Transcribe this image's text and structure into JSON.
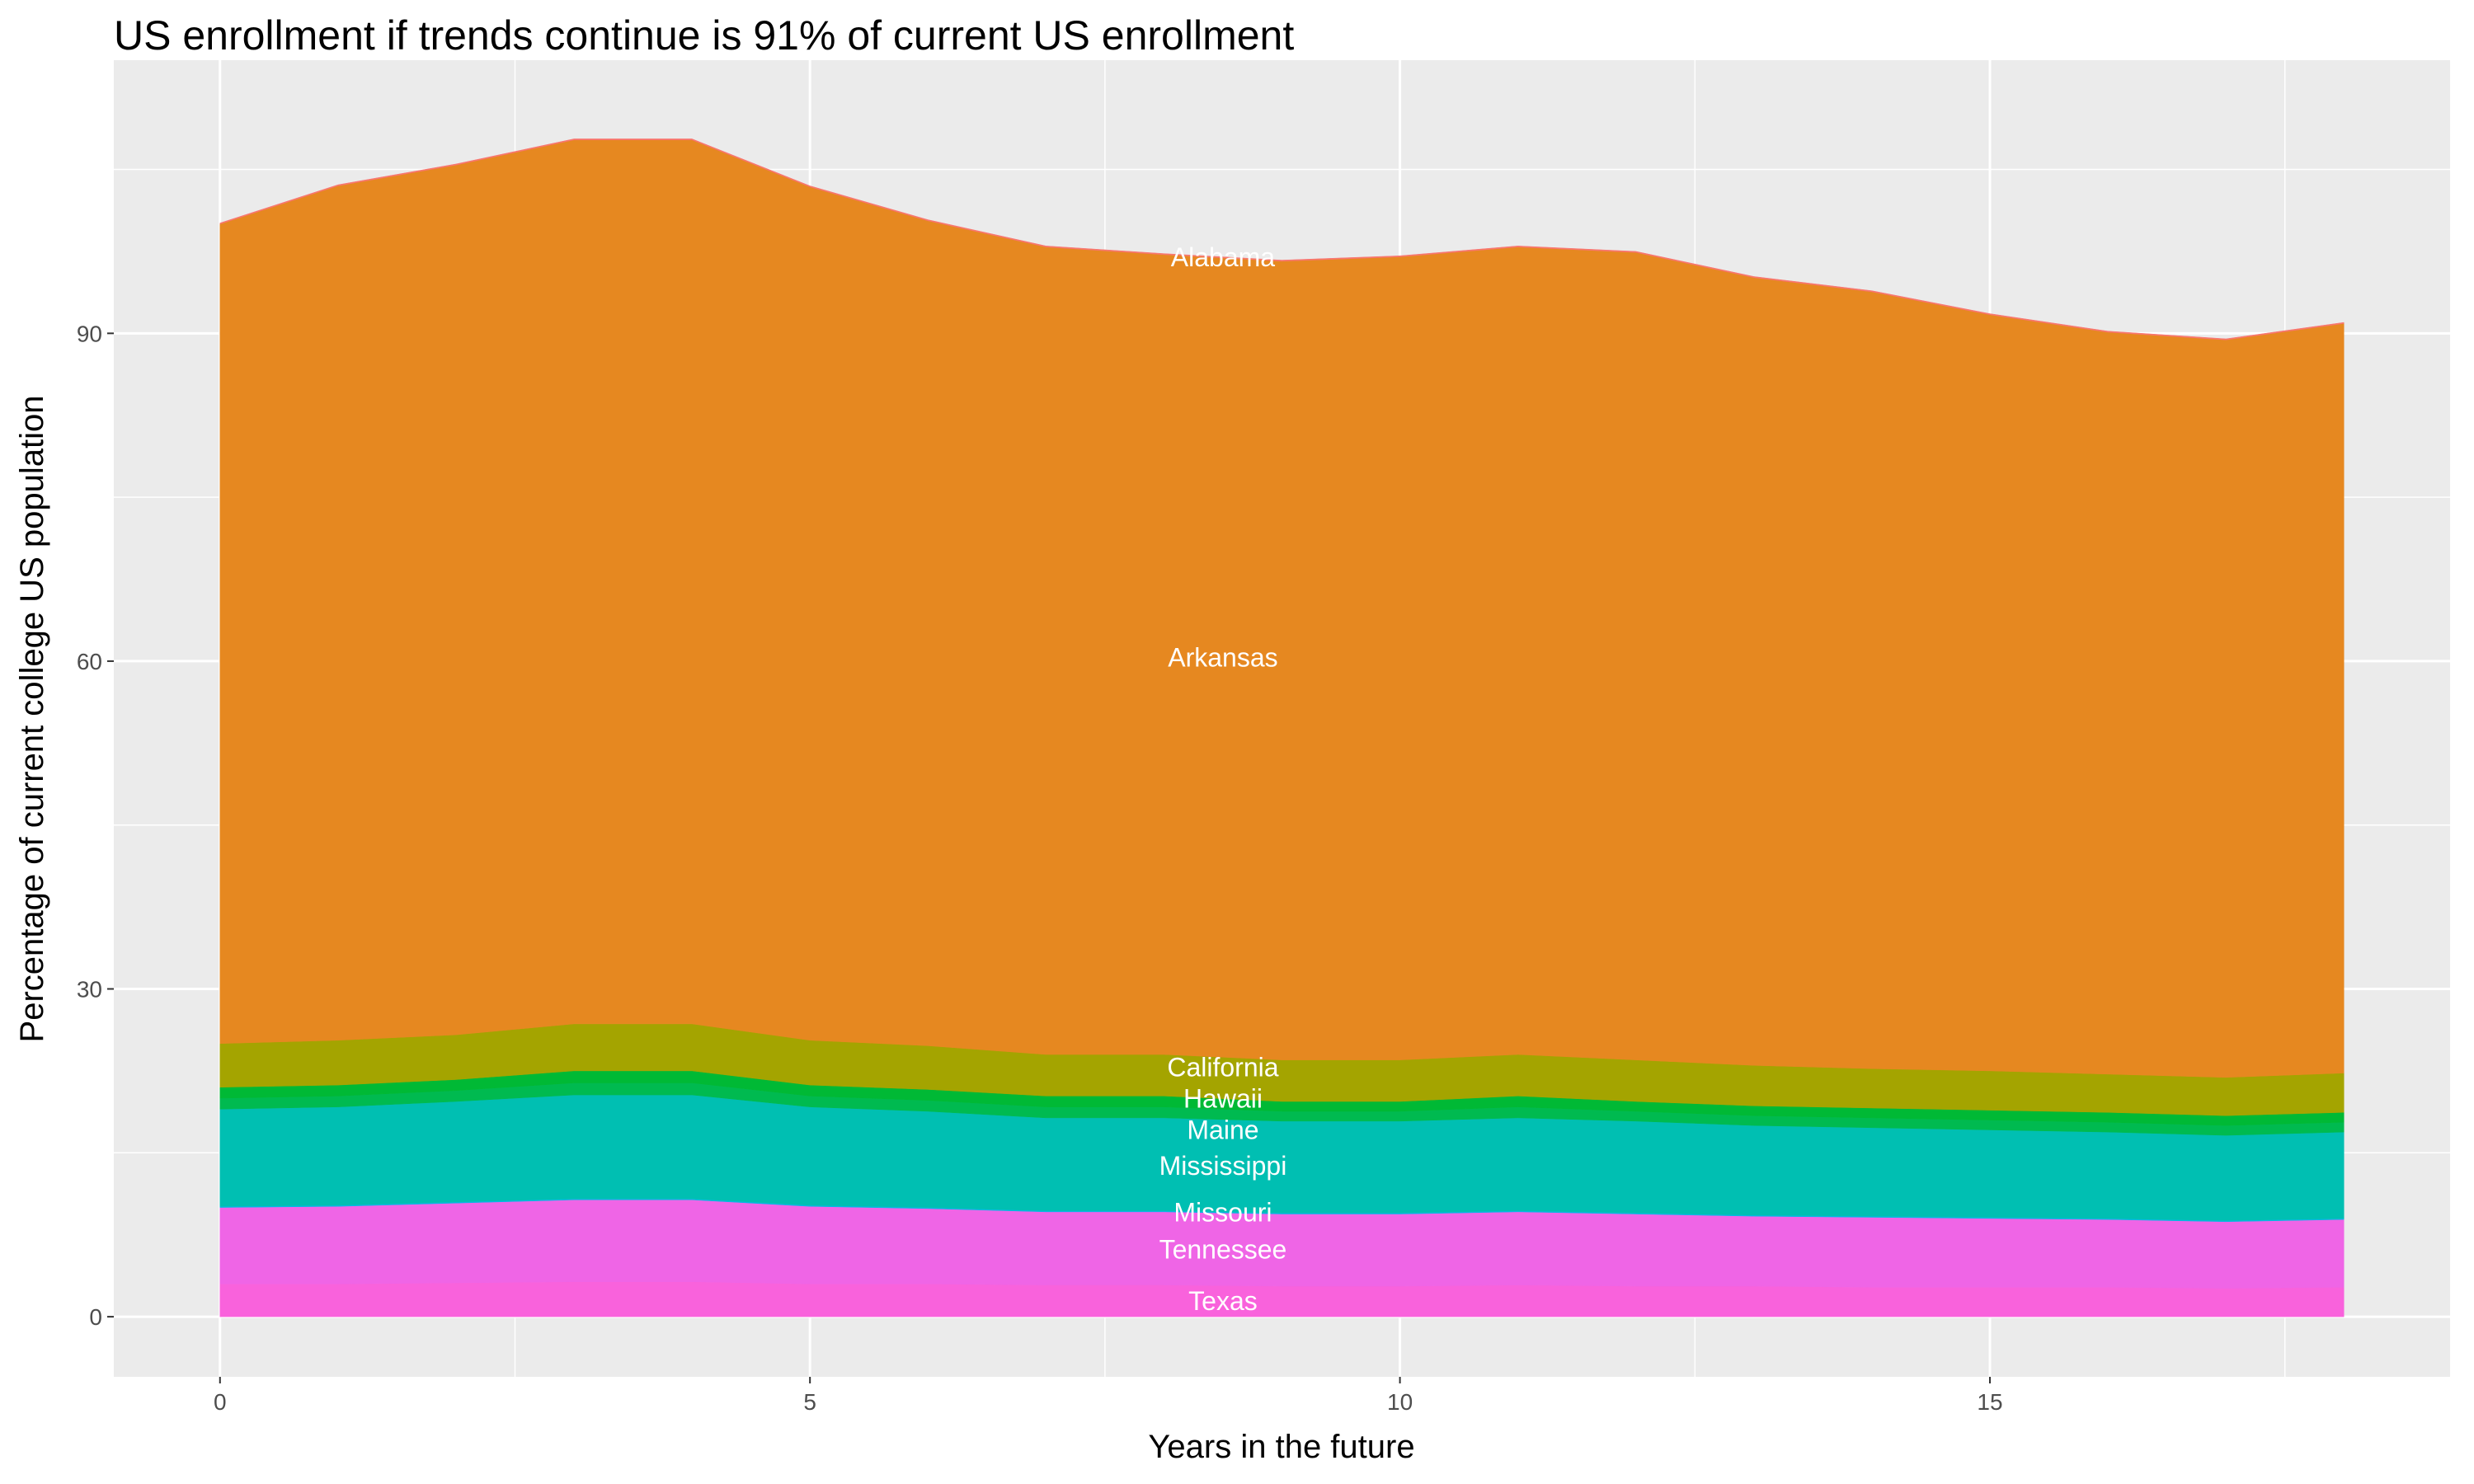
{
  "chart_data": {
    "type": "area",
    "stacked": true,
    "title": "US enrollment if trends continue is 91% of current US enrollment",
    "xlabel": "Years in the future",
    "ylabel": "Percentage of current college US population",
    "x": [
      0,
      1,
      2,
      3,
      4,
      5,
      6,
      7,
      8,
      9,
      10,
      11,
      12,
      13,
      14,
      15,
      16,
      17,
      18
    ],
    "xlim": [
      -0.9,
      18.9
    ],
    "ylim": [
      -5.5,
      115
    ],
    "xticks": [
      0,
      5,
      10,
      15
    ],
    "yticks": [
      0,
      30,
      60,
      90
    ],
    "grid": true,
    "legend": "none",
    "label_x": 8.5,
    "series": [
      {
        "name": "Texas",
        "color": "#F962DC",
        "values": [
          3.0,
          3.0,
          3.1,
          3.2,
          3.2,
          3.0,
          3.0,
          2.9,
          2.9,
          2.8,
          2.8,
          2.9,
          2.8,
          2.8,
          2.7,
          2.7,
          2.7,
          2.6,
          2.7
        ]
      },
      {
        "name": "Tennessee",
        "color": "#EF65E6",
        "values": [
          7.0,
          7.1,
          7.3,
          7.5,
          7.5,
          7.1,
          6.9,
          6.7,
          6.7,
          6.6,
          6.6,
          6.7,
          6.6,
          6.4,
          6.4,
          6.3,
          6.2,
          6.1,
          6.2
        ]
      },
      {
        "name": "Missouri",
        "color": "#00B9E3",
        "values": [
          0.1,
          0.1,
          0.1,
          0.1,
          0.1,
          0.1,
          0.1,
          0.1,
          0.1,
          0.1,
          0.1,
          0.1,
          0.1,
          0.1,
          0.1,
          0.1,
          0.1,
          0.1,
          0.1
        ]
      },
      {
        "name": "Mississippi",
        "color": "#00BFB2",
        "values": [
          8.9,
          9.0,
          9.2,
          9.5,
          9.5,
          9.0,
          8.8,
          8.5,
          8.5,
          8.4,
          8.4,
          8.5,
          8.4,
          8.2,
          8.1,
          8.0,
          7.9,
          7.8,
          7.9
        ]
      },
      {
        "name": "Maine",
        "color": "#00BA50",
        "values": [
          1.0,
          1.0,
          1.0,
          1.1,
          1.1,
          1.0,
          1.0,
          1.0,
          1.0,
          0.9,
          0.9,
          1.0,
          0.9,
          0.9,
          0.9,
          0.9,
          0.9,
          0.9,
          0.9
        ]
      },
      {
        "name": "Hawaii",
        "color": "#00B935",
        "values": [
          1.0,
          1.0,
          1.0,
          1.1,
          1.1,
          1.0,
          1.0,
          1.0,
          1.0,
          0.9,
          0.9,
          1.0,
          0.9,
          0.9,
          0.9,
          0.9,
          0.9,
          0.9,
          0.9
        ]
      },
      {
        "name": "California",
        "color": "#A4A400",
        "values": [
          4.0,
          4.1,
          4.1,
          4.3,
          4.3,
          4.1,
          4.0,
          3.8,
          3.8,
          3.8,
          3.8,
          3.8,
          3.8,
          3.7,
          3.6,
          3.6,
          3.5,
          3.5,
          3.6
        ]
      },
      {
        "name": "Arkansas",
        "color": "#E68820",
        "values": [
          75.0,
          78.2,
          79.6,
          80.9,
          80.9,
          78.1,
          75.5,
          73.9,
          73.2,
          73.1,
          73.5,
          73.9,
          73.9,
          72.1,
          71.1,
          69.2,
          67.9,
          67.5,
          68.6
        ]
      },
      {
        "name": "Alabama",
        "color": "#F8766D",
        "values": [
          0.1,
          0.1,
          0.1,
          0.1,
          0.1,
          0.1,
          0.1,
          0.1,
          0.1,
          0.1,
          0.1,
          0.1,
          0.1,
          0.1,
          0.1,
          0.1,
          0.1,
          0.1,
          0.1
        ]
      }
    ]
  }
}
